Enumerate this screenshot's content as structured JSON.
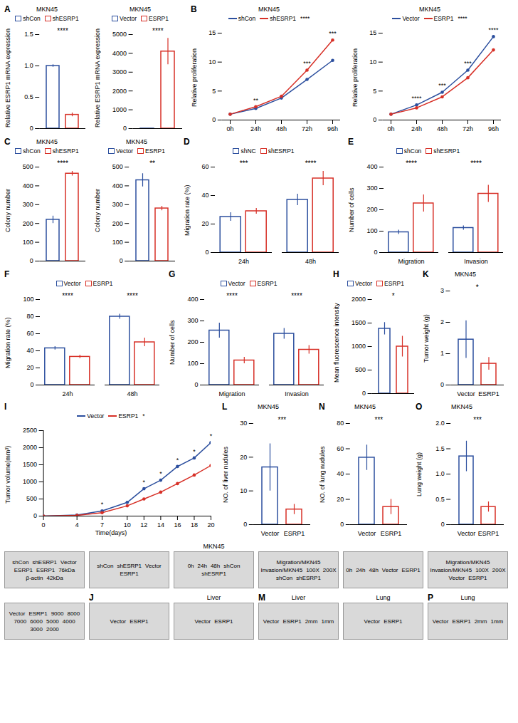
{
  "chart_data": [
    {
      "type": "bar",
      "panel": "A",
      "title": "MKN45",
      "ylabel": "Relative ESRP1 mRNA expression",
      "categories": [
        "shCon",
        "shESRP1"
      ],
      "values": [
        1.0,
        0.22
      ],
      "errors": [
        0.02,
        0.03
      ],
      "colors": [
        "#2c4f9e",
        "#d73027"
      ],
      "ylim": [
        0,
        1.5
      ],
      "yticks": [
        0,
        0.5,
        {
          "value": 1,
          "label": "1.0"
        },
        1.5
      ],
      "annotation": "****",
      "legend": "top",
      "tick_labels": "y"
    },
    {
      "type": "bar",
      "title": "MKN45",
      "ylabel": "Relative ESRP1 mRNA expression",
      "categories": [
        "Vector",
        "ESRP1"
      ],
      "values": [
        1,
        4100
      ],
      "errors": [
        0.2,
        700
      ],
      "colors": [
        "#2c4f9e",
        "#d73027"
      ],
      "ylim": [
        0,
        5000
      ],
      "yticks": [
        0,
        1000,
        2000,
        3000,
        4000,
        5000
      ],
      "annotation": "****",
      "legend": "top",
      "tick_labels": "y"
    },
    {
      "type": "line",
      "panel": "B",
      "title": "MKN45",
      "ylabel": "Relative proliferation",
      "categories": [
        "0h",
        "24h",
        "48h",
        "72h",
        "96h"
      ],
      "series": [
        {
          "name": "shCon",
          "color": "#2c4f9e",
          "values": [
            1,
            2,
            3.8,
            7,
            10.3
          ]
        },
        {
          "name": "shESRP1",
          "color": "#d73027",
          "values": [
            1,
            2.3,
            4.1,
            8.6,
            13.8
          ]
        }
      ],
      "annotations": [
        null,
        "**",
        null,
        "***",
        "***"
      ],
      "end_annotation": "****",
      "ylim": [
        0,
        15
      ],
      "yticks": [
        0,
        5,
        10,
        15
      ],
      "legend": "top",
      "marker": "circle"
    },
    {
      "type": "line",
      "title": "MKN45",
      "ylabel": "Relative proliferation",
      "categories": [
        "0h",
        "24h",
        "48h",
        "72h",
        "96h"
      ],
      "series": [
        {
          "name": "Vector",
          "color": "#2c4f9e",
          "values": [
            1,
            2.6,
            4.8,
            8.6,
            14.4
          ]
        },
        {
          "name": "ESRP1",
          "color": "#d73027",
          "values": [
            1,
            2.1,
            4.0,
            7.3,
            12.1
          ]
        }
      ],
      "annotations": [
        null,
        "****",
        "***",
        "***",
        "****"
      ],
      "end_annotation": "****",
      "ylim": [
        0,
        15
      ],
      "yticks": [
        0,
        5,
        10,
        15
      ],
      "legend": "top",
      "marker": "circle"
    },
    {
      "type": "bar",
      "panel": "C",
      "title": "MKN45",
      "ylabel": "Colony number",
      "categories": [
        "shCon",
        "shESRP1"
      ],
      "values": [
        220,
        465
      ],
      "errors": [
        20,
        12
      ],
      "colors": [
        "#2c4f9e",
        "#d73027"
      ],
      "ylim": [
        0,
        500
      ],
      "yticks": [
        0,
        100,
        200,
        300,
        400,
        500
      ],
      "annotation": "****",
      "legend": "top",
      "tick_labels": "y"
    },
    {
      "type": "bar",
      "title": "MKN45",
      "ylabel": "Colony number",
      "categories": [
        "Vector",
        "ESRP1"
      ],
      "values": [
        430,
        280
      ],
      "errors": [
        35,
        12
      ],
      "colors": [
        "#2c4f9e",
        "#d73027"
      ],
      "ylim": [
        0,
        500
      ],
      "yticks": [
        0,
        100,
        200,
        300,
        400,
        500
      ],
      "annotation": "**",
      "legend": "top",
      "tick_labels": "y"
    },
    {
      "type": "grouped_bar",
      "panel": "D",
      "ylabel": "Migration rate (%)",
      "categories": [
        "24h",
        "48h"
      ],
      "series": [
        {
          "name": "shNC",
          "color": "#2c4f9e",
          "values": [
            25,
            37
          ],
          "errors": [
            3,
            4
          ]
        },
        {
          "name": "shESRP1",
          "color": "#d73027",
          "values": [
            29,
            52
          ],
          "errors": [
            2,
            5
          ]
        }
      ],
      "annotations": [
        "***",
        "****"
      ],
      "ylim": [
        0,
        60
      ],
      "yticks": [
        0,
        20,
        40,
        60
      ],
      "legend": "top"
    },
    {
      "type": "grouped_bar",
      "panel": "E",
      "ylabel": "Number of cells",
      "categories": [
        "Migration",
        "Invasion"
      ],
      "series": [
        {
          "name": "shCon",
          "color": "#2c4f9e",
          "values": [
            95,
            115
          ],
          "errors": [
            10,
            10
          ]
        },
        {
          "name": "shESRP1",
          "color": "#d73027",
          "values": [
            230,
            275
          ],
          "errors": [
            40,
            40
          ]
        }
      ],
      "annotations": [
        "****",
        "****"
      ],
      "ylim": [
        0,
        400
      ],
      "yticks": [
        0,
        100,
        200,
        300,
        400
      ],
      "legend": "top"
    },
    {
      "type": "grouped_bar",
      "panel": "F",
      "ylabel": "Migration rate (%)",
      "categories": [
        "24h",
        "48h"
      ],
      "series": [
        {
          "name": "Vector",
          "color": "#2c4f9e",
          "values": [
            43,
            80
          ],
          "errors": [
            2,
            3
          ]
        },
        {
          "name": "ESRP1",
          "color": "#d73027",
          "values": [
            33,
            50
          ],
          "errors": [
            2,
            5
          ]
        }
      ],
      "annotations": [
        "****",
        "****"
      ],
      "ylim": [
        0,
        100
      ],
      "yticks": [
        0,
        20,
        40,
        60,
        80,
        100
      ],
      "legend": "top"
    },
    {
      "type": "grouped_bar",
      "panel": "G",
      "ylabel": "Number of cells",
      "categories": [
        "Migration",
        "Invasion"
      ],
      "series": [
        {
          "name": "Vector",
          "color": "#2c4f9e",
          "values": [
            255,
            240
          ],
          "errors": [
            35,
            25
          ]
        },
        {
          "name": "ESRP1",
          "color": "#d73027",
          "values": [
            115,
            165
          ],
          "errors": [
            15,
            20
          ]
        }
      ],
      "annotations": [
        "****",
        "****"
      ],
      "ylim": [
        0,
        400
      ],
      "yticks": [
        0,
        100,
        200,
        300,
        400
      ],
      "legend": "top"
    },
    {
      "type": "bar",
      "panel": "H",
      "ylabel": "Mean fluorescence intensity",
      "categories": [
        "Vector",
        "ESRP1"
      ],
      "values": [
        1380,
        1000
      ],
      "errors": [
        130,
        220
      ],
      "colors": [
        "#2c4f9e",
        "#d73027"
      ],
      "ylim": [
        0,
        2000
      ],
      "yticks": [
        0,
        500,
        1000,
        1500,
        2000
      ],
      "annotation": "*",
      "legend": "top",
      "tick_labels": "y"
    },
    {
      "type": "bar",
      "panel": "K",
      "title": "MKN45",
      "ylabel": "Tumor weight (g)",
      "categories": [
        "Vector",
        "ESRP1"
      ],
      "values": [
        1.45,
        0.68
      ],
      "errors": [
        0.6,
        0.2
      ],
      "colors": [
        "#2c4f9e",
        "#d73027"
      ],
      "ylim": [
        0,
        3
      ],
      "yticks": [
        0,
        1,
        2,
        3
      ],
      "annotation": "*"
    },
    {
      "type": "line",
      "panel": "I",
      "ylabel": "Tumor volume(mm³)",
      "xlabel": "Time(days)",
      "x": [
        0,
        4,
        7,
        10,
        12,
        14,
        16,
        18,
        20
      ],
      "series": [
        {
          "name": "Vector",
          "color": "#2c4f9e",
          "values": [
            0,
            30,
            150,
            400,
            800,
            1050,
            1450,
            1700,
            2150
          ]
        },
        {
          "name": "ESRP1",
          "color": "#d73027",
          "values": [
            0,
            20,
            100,
            300,
            500,
            700,
            950,
            1200,
            1480
          ]
        }
      ],
      "annotations": [
        null,
        null,
        "*",
        null,
        "*",
        "*",
        "*",
        "*",
        "*"
      ],
      "end_annotation": "*",
      "xlim": [
        0,
        20
      ],
      "xticks": [
        0,
        4,
        7,
        10,
        12,
        14,
        16,
        18,
        20
      ],
      "ylim": [
        0,
        2500
      ],
      "yticks": [
        0,
        500,
        1000,
        1500,
        2000,
        2500
      ],
      "legend": "top",
      "marker": "circle"
    },
    {
      "type": "bar",
      "panel": "L",
      "title": "MKN45",
      "ylabel": "NO. of liver nudules",
      "categories": [
        "Vector",
        "ESRP1"
      ],
      "values": [
        17,
        4.5
      ],
      "errors": [
        7,
        1.5
      ],
      "colors": [
        "#2c4f9e",
        "#d73027"
      ],
      "ylim": [
        0,
        30
      ],
      "yticks": [
        0,
        10,
        20,
        30
      ],
      "annotation": "***"
    },
    {
      "type": "bar",
      "panel": "N",
      "title": "MKN45",
      "ylabel": "NO. of lung nudules",
      "categories": [
        "Vector",
        "ESRP1"
      ],
      "values": [
        53,
        14
      ],
      "errors": [
        10,
        6
      ],
      "colors": [
        "#2c4f9e",
        "#d73027"
      ],
      "ylim": [
        0,
        80
      ],
      "yticks": [
        0,
        20,
        40,
        60,
        80
      ],
      "annotation": "***"
    },
    {
      "type": "bar",
      "panel": "O",
      "title": "MKN45",
      "ylabel": "Lung weight (g)",
      "categories": [
        "Vector",
        "ESRP1"
      ],
      "values": [
        1.35,
        0.35
      ],
      "errors": [
        0.3,
        0.1
      ],
      "colors": [
        "#2c4f9e",
        "#d73027"
      ],
      "ylim": [
        0,
        2
      ],
      "yticks": [
        0,
        0.5,
        {
          "value": 1,
          "label": "1.0"
        },
        1.5,
        {
          "value": 2,
          "label": "2.0"
        }
      ],
      "annotation": "***"
    }
  ],
  "images": [
    {
      "labels": [
        "shCon",
        "shESRP1",
        "Vector",
        "ESRP1",
        "ESRP1",
        "76kDa",
        "β-actin",
        "42kDa"
      ]
    },
    {
      "labels": [
        "shCon",
        "shESRP1",
        "Vector",
        "ESRP1"
      ]
    },
    {
      "title": "MKN45",
      "labels": [
        "0h",
        "24h",
        "48h",
        "shCon",
        "shESRP1"
      ]
    },
    {
      "labels": [
        "Migration/MKN45",
        "Invasion/MKN45",
        "100X",
        "200X",
        "shCon",
        "shESRP1"
      ]
    },
    {
      "labels": [
        "0h",
        "24h",
        "48h",
        "Vector",
        "ESRP1"
      ]
    },
    {
      "labels": [
        "Migration/MKN45",
        "Invasion/MKN45",
        "100X",
        "200X",
        "Vector",
        "ESRP1"
      ]
    },
    {
      "labels": [
        "Vector",
        "ESRP1",
        "9000",
        "8000",
        "7000",
        "6000",
        "5000",
        "4000",
        "3000",
        "2000"
      ]
    },
    {
      "panel": "J",
      "labels": [
        "Vector",
        "ESRP1"
      ]
    },
    {
      "title": "Liver",
      "labels": [
        "Vector",
        "ESRP1"
      ]
    },
    {
      "panel": "M",
      "title": "Liver",
      "labels": [
        "Vector",
        "ESRP1",
        "2mm",
        "1mm"
      ]
    },
    {
      "title": "Lung",
      "labels": [
        "Vector",
        "ESRP1"
      ]
    },
    {
      "panel": "P",
      "title": "Lung",
      "labels": [
        "Vector",
        "ESRP1",
        "2mm",
        "1mm"
      ]
    }
  ]
}
